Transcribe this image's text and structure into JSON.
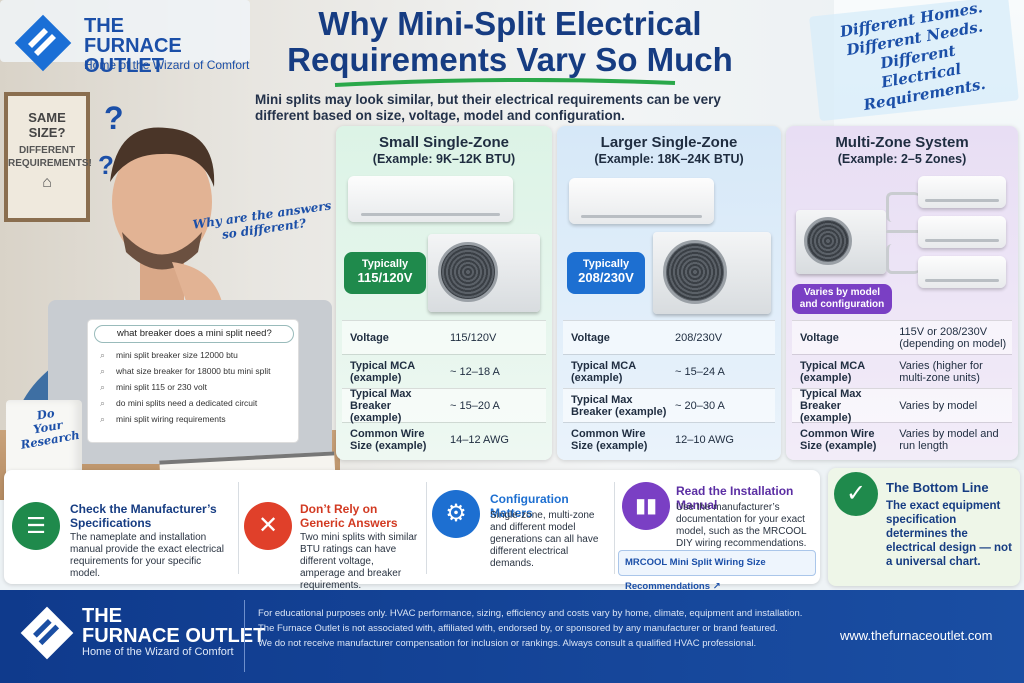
{
  "brand": {
    "name_line1": "THE",
    "name_line2": "FURNACE OUTLET",
    "tagline": "Home of the Wizard of Comfort"
  },
  "headline": {
    "line1": "Why  Mini-Split Electrical",
    "line2": "Requirements Vary So Much"
  },
  "subheadline": "Mini splits may look similar, but their electrical requirements can be very different based on size, voltage, model and configuration.",
  "corner_note": [
    "Different Homes.",
    "Different Needs.",
    "Different",
    "Electrical Requirements."
  ],
  "sign": {
    "line1": "SAME",
    "line2": "SIZE?",
    "line3": "DIFFERENT",
    "line4": "REQUIREMENTS!",
    "icon": "house-icon"
  },
  "thought_bubble": "Why are the answers so different?",
  "search": {
    "query": "what breaker does a mini split need?",
    "suggestions": [
      "mini split breaker size 12000 btu",
      "what size breaker for 18000 btu mini split",
      "mini split 115 or 230 volt",
      "do mini splits need a dedicated circuit",
      "mini split wiring requirements"
    ]
  },
  "mug_text": [
    "Do",
    "Your",
    "Research"
  ],
  "zones": [
    {
      "title": "Small Single-Zone",
      "example": "(Example: 9K–12K BTU)",
      "badge_label": "Typically",
      "badge_value": "115/120V",
      "badge_color": "#1f8a4c",
      "rows": [
        {
          "key": "Voltage",
          "value": "115/120V"
        },
        {
          "key": "Typical MCA (example)",
          "value": "~ 12–18 A"
        },
        {
          "key": "Typical Max Breaker (example)",
          "value": "~ 15–20 A"
        },
        {
          "key": "Common Wire Size (example)",
          "value": "14–12 AWG"
        }
      ]
    },
    {
      "title": "Larger Single-Zone",
      "example": "(Example: 18K–24K BTU)",
      "badge_label": "Typically",
      "badge_value": "208/230V",
      "badge_color": "#1d6fd1",
      "rows": [
        {
          "key": "Voltage",
          "value": "208/230V"
        },
        {
          "key": "Typical MCA (example)",
          "value": "~ 15–24 A"
        },
        {
          "key": "Typical Max Breaker (example)",
          "value": "~ 20–30 A"
        },
        {
          "key": "Common Wire Size (example)",
          "value": "12–10 AWG"
        }
      ]
    },
    {
      "title": "Multi-Zone System",
      "example": "(Example: 2–5 Zones)",
      "badge_label": "Varies by model and configuration",
      "badge_value": "",
      "badge_color": "#7a3fc4",
      "rows": [
        {
          "key": "Voltage",
          "value": "115V or 208/230V (depending on model)"
        },
        {
          "key": "Typical MCA (example)",
          "value": "Varies (higher for multi-zone units)"
        },
        {
          "key": "Typical Max Breaker (example)",
          "value": "Varies by model"
        },
        {
          "key": "Common Wire Size (example)",
          "value": "Varies by model and run length"
        }
      ]
    }
  ],
  "tips": [
    {
      "title": "Check the Manufacturer’s Specifications",
      "desc": "The nameplate and installation manual provide the exact electrical requirements for your specific model.",
      "icon": "clipboard-icon",
      "color": "#1f8a4c",
      "title_color": "#163c82"
    },
    {
      "title": "Don’t Rely on Generic Answers",
      "desc": "Two mini splits with similar BTU ratings can have different voltage, amperage and breaker requirements.",
      "icon": "x-icon",
      "color": "#e0402a",
      "title_color": "#d23a22"
    },
    {
      "title": "Configuration Matters",
      "desc": "Single-zone, multi-zone and different model generations can all have different electrical demands.",
      "icon": "gear-icon",
      "color": "#1d6fd1",
      "title_color": "#1d6fd1"
    },
    {
      "title": "Read the Installation Manual",
      "desc": "Use the manufacturer’s documentation for your exact model, such as the MRCOOL DIY wiring recommendations.",
      "icon": "book-icon",
      "color": "#7a3fc4",
      "title_color": "#5b2ea3"
    }
  ],
  "manual_link": "MRCOOL Mini Split Wiring Size Recommendations",
  "bottom_line": {
    "title": "The Bottom Line",
    "text": "The exact equipment specification determines the electrical design — not a universal chart.",
    "icon": "check-icon",
    "color": "#1f8a4c"
  },
  "footer": {
    "name_line1": "THE",
    "name_line2": "FURNACE OUTLET",
    "tagline": "Home of the Wizard of Comfort",
    "disclaimer": [
      "For educational purposes only. HVAC performance, sizing, efficiency and costs vary by home, climate, equipment and installation.",
      "The Furnace Outlet is not associated with, affiliated with, endorsed by, or sponsored by any manufacturer or brand featured.",
      "We do not receive manufacturer compensation for inclusion or rankings. Always consult a qualified HVAC professional."
    ],
    "url": "www.thefurnaceoutlet.com"
  }
}
